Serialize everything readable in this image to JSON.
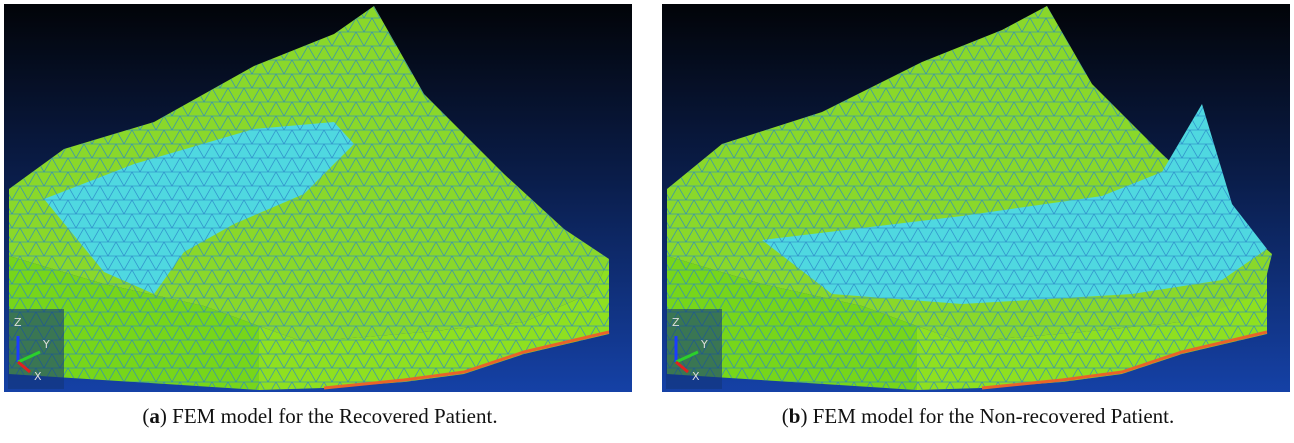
{
  "panels": [
    {
      "prefix": "(",
      "label": "a",
      "text": ") FEM model for the Recovered Patient.",
      "axes": [
        "Z",
        "Y",
        "X"
      ]
    },
    {
      "prefix": "(",
      "label": "b",
      "text": ") FEM model for the Non-recovered Patient.",
      "axes": [
        "Z",
        "Y",
        "X"
      ]
    }
  ]
}
